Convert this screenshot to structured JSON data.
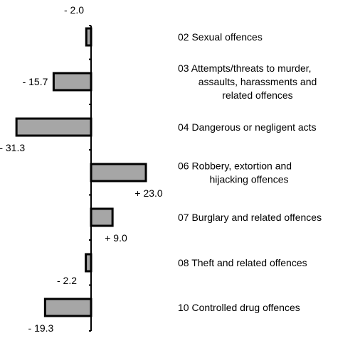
{
  "chart_data": {
    "type": "bar",
    "orientation": "horizontal",
    "categories": [
      "02 Sexual offences",
      "03 Attempts/threats to murder, assaults, harassments and related offences",
      "04 Dangerous or negligent acts",
      "06 Robbery, extortion and hijacking offences",
      "07 Burglary and related offences",
      "08 Theft and related offences",
      "10 Controlled drug offences"
    ],
    "category_lines": [
      [
        "02 Sexual offences"
      ],
      [
        "03 Attempts/threats to murder,",
        "assaults, harassments and",
        "related offences"
      ],
      [
        "04 Dangerous or negligent  acts"
      ],
      [
        "06 Robbery, extortion and",
        "hijacking offences"
      ],
      [
        "07 Burglary and  related offences"
      ],
      [
        "08 Theft and related offences"
      ],
      [
        "10 Controlled drug offences"
      ]
    ],
    "values": [
      -2.0,
      -15.7,
      -31.3,
      23.0,
      9.0,
      -2.2,
      -19.3
    ],
    "value_labels": [
      "- 2.0",
      "- 15.7",
      "- 31.3",
      "+ 23.0",
      "+ 9.0",
      "- 2.2",
      "- 19.3"
    ],
    "xlim": [
      -31.3,
      23.0
    ],
    "grid": false,
    "colors": {
      "bar_fill": "#a6a6a6",
      "bar_stroke": "#000000",
      "axis": "#000000"
    }
  }
}
